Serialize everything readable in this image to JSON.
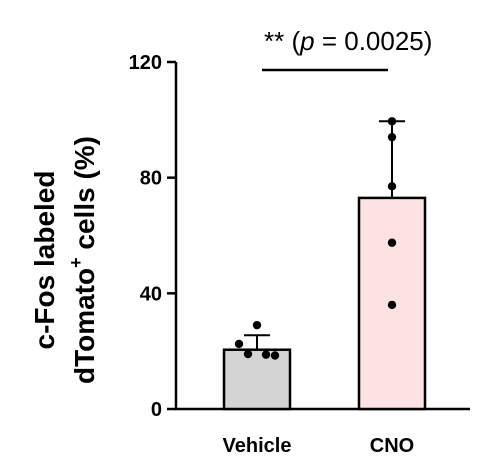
{
  "chart_data": {
    "type": "bar",
    "title": "",
    "xlabel": "",
    "ylabel_line1": "c-Fos labeled",
    "ylabel_line2_pre": "dTomato",
    "ylabel_line2_sup": "+",
    "ylabel_line2_post": " cells (%)",
    "ylim": [
      0,
      120
    ],
    "yticks": [
      0,
      40,
      80,
      120
    ],
    "grid": false,
    "categories": [
      "Vehicle",
      "CNO"
    ],
    "values": [
      20.5,
      73
    ],
    "error_upper": [
      25.5,
      99.5
    ],
    "points": [
      [
        29,
        22.5,
        19,
        18.8,
        18.5
      ],
      [
        99.5,
        94,
        77,
        57.5,
        36
      ]
    ],
    "bar_colors": [
      "#d4d4d4",
      "#fde2e4"
    ],
    "significance": {
      "stars": "**",
      "p_open": " (",
      "p_label": "p",
      "p_rest": " = 0.0025)"
    }
  }
}
